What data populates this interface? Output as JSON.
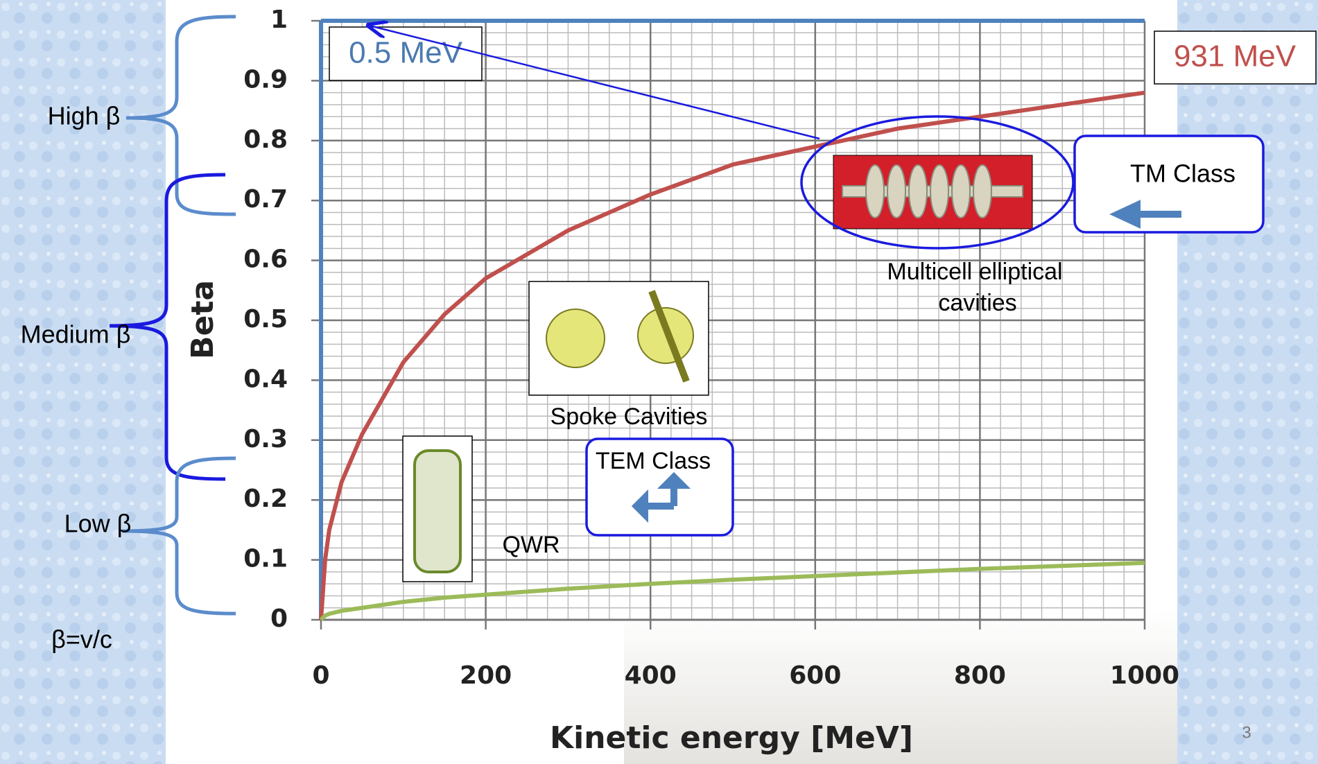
{
  "chart_data": {
    "type": "line",
    "x_label": "Kinetic energy [MeV]",
    "y_label": "Beta",
    "x": [
      0,
      5,
      10,
      25,
      50,
      100,
      150,
      200,
      300,
      400,
      500,
      600,
      700,
      800,
      900,
      1000
    ],
    "series": [
      {
        "color": "#c0504d",
        "values": [
          0,
          0.1,
          0.15,
          0.23,
          0.31,
          0.43,
          0.51,
          0.57,
          0.65,
          0.71,
          0.76,
          0.79,
          0.82,
          0.84,
          0.86,
          0.88
        ]
      },
      {
        "color": "#9bbb59",
        "values": [
          0,
          0.007,
          0.01,
          0.015,
          0.02,
          0.03,
          0.037,
          0.042,
          0.052,
          0.06,
          0.067,
          0.073,
          0.079,
          0.085,
          0.09,
          0.095
        ]
      }
    ],
    "xlim": [
      0,
      1000
    ],
    "xticks": [
      0,
      200,
      400,
      600,
      800,
      1000
    ],
    "ylim": [
      0,
      1
    ],
    "yticks": [
      0,
      0.1,
      0.2,
      0.3,
      0.4,
      0.5,
      0.6,
      0.7,
      0.8,
      0.9,
      1
    ],
    "grid": true,
    "annotations": [
      "0.5 MeV",
      "931 MeV",
      "TM Class",
      "Multicell elliptical",
      "cavities",
      "Spoke Cavities",
      "TEM Class",
      "QWR"
    ]
  },
  "side_labels": [
    "High β",
    "Medium β",
    "Low β",
    "β=v/c"
  ],
  "page_number": "3"
}
